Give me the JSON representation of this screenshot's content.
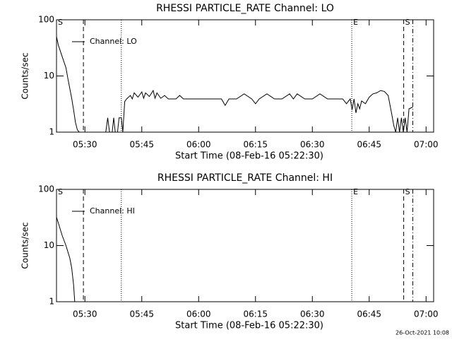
{
  "chart_data": [
    {
      "type": "line",
      "title": "RHESSI PARTICLE_RATE Channel: LO",
      "xlabel": "Start Time (08-Feb-16 05:22:30)",
      "ylabel": "Counts/sec",
      "log_y": true,
      "ylim": [
        1,
        100
      ],
      "yticks": [
        1,
        10,
        100
      ],
      "xlim": [
        322.5,
        422
      ],
      "xticks": [
        {
          "value": 330,
          "label": "05:30"
        },
        {
          "value": 345,
          "label": "05:45"
        },
        {
          "value": 360,
          "label": "06:00"
        },
        {
          "value": 375,
          "label": "06:15"
        },
        {
          "value": 390,
          "label": "06:30"
        },
        {
          "value": 405,
          "label": "06:45"
        },
        {
          "value": 420,
          "label": "07:00"
        }
      ],
      "legend": "upper left",
      "markers": [
        {
          "x": 322.5,
          "style": "solid",
          "label": "S"
        },
        {
          "x": 329.6,
          "style": "dashed"
        },
        {
          "x": 339.6,
          "style": "dotted"
        },
        {
          "x": 400.4,
          "style": "dotted",
          "label": "E"
        },
        {
          "x": 414.1,
          "style": "dashed",
          "label": "S"
        },
        {
          "x": 416.5,
          "style": "dashdot"
        }
      ],
      "series": [
        {
          "name": "Channel: LO",
          "color": "#000000",
          "x": [
            322.5,
            323,
            324,
            325,
            325.5,
            326,
            326.5,
            327,
            327.5,
            328,
            328.5,
            335.5,
            336,
            336.5,
            337.2,
            337.6,
            338,
            338.6,
            339,
            339.6,
            340,
            340.5,
            341,
            342,
            342.5,
            343,
            344,
            345,
            345.5,
            346,
            347,
            348,
            348.5,
            349,
            350,
            351,
            352,
            353,
            354,
            355,
            356,
            357,
            358,
            359,
            360,
            362,
            364,
            366,
            367,
            368,
            370,
            372,
            374,
            375,
            376,
            378,
            380,
            382,
            384,
            385,
            386,
            388,
            390,
            392,
            394,
            396,
            398,
            399,
            400,
            400.5,
            401,
            401.5,
            402,
            402.5,
            403,
            404,
            405,
            406,
            407,
            408,
            409,
            410,
            410.5,
            411,
            411.5,
            412,
            412.5,
            413,
            413.5,
            414,
            414.5,
            415,
            415.5,
            416.5
          ],
          "values": [
            50,
            35,
            22,
            14,
            9,
            6,
            4,
            2.5,
            1.5,
            1.1,
            1,
            1,
            1.8,
            1,
            1,
            1.8,
            1,
            1,
            1.8,
            1.8,
            1,
            3.5,
            3.9,
            4.5,
            3.9,
            5,
            4.2,
            5.2,
            4,
            5,
            4.3,
            5.5,
            4,
            5,
            4,
            4.5,
            3.9,
            3.9,
            3.9,
            4.5,
            3.9,
            3.9,
            3.9,
            3.9,
            3.9,
            3.9,
            3.9,
            3.9,
            3,
            3.9,
            3.9,
            4.8,
            3.9,
            3.2,
            3.9,
            4.8,
            3.9,
            3.9,
            4.8,
            3.9,
            4.8,
            3.9,
            3.9,
            4.8,
            3.9,
            3.9,
            3.9,
            3.2,
            3.9,
            2.5,
            3.9,
            2.2,
            3.2,
            2.6,
            3.6,
            3.2,
            4.2,
            4.8,
            5,
            5.5,
            5.3,
            4.5,
            3,
            2,
            1.3,
            1,
            1.8,
            1,
            1.8,
            1,
            1.8,
            1,
            2.6,
            2.8
          ]
        }
      ]
    },
    {
      "type": "line",
      "title": "RHESSI PARTICLE_RATE Channel: HI",
      "xlabel": "Start Time (08-Feb-16 05:22:30)",
      "ylabel": "Counts/sec",
      "log_y": true,
      "ylim": [
        1,
        100
      ],
      "yticks": [
        1,
        10,
        100
      ],
      "xlim": [
        322.5,
        422
      ],
      "xticks": [
        {
          "value": 330,
          "label": "05:30"
        },
        {
          "value": 345,
          "label": "05:45"
        },
        {
          "value": 360,
          "label": "06:00"
        },
        {
          "value": 375,
          "label": "06:15"
        },
        {
          "value": 390,
          "label": "06:30"
        },
        {
          "value": 405,
          "label": "06:45"
        },
        {
          "value": 420,
          "label": "07:00"
        }
      ],
      "legend": "upper left",
      "markers": [
        {
          "x": 322.5,
          "style": "solid",
          "label": "S"
        },
        {
          "x": 329.6,
          "style": "dashed"
        },
        {
          "x": 339.6,
          "style": "dotted"
        },
        {
          "x": 400.4,
          "style": "dotted",
          "label": "E"
        },
        {
          "x": 414.1,
          "style": "dashed",
          "label": "S"
        },
        {
          "x": 416.5,
          "style": "dashdot"
        }
      ],
      "series": [
        {
          "name": "Channel: HI",
          "color": "#000000",
          "x": [
            322.5,
            323,
            324,
            325,
            326,
            326.5,
            327,
            327.3
          ],
          "values": [
            32,
            25,
            15,
            10,
            6,
            4,
            2,
            1
          ]
        }
      ]
    }
  ],
  "footer": "26-Oct-2021 10:08"
}
